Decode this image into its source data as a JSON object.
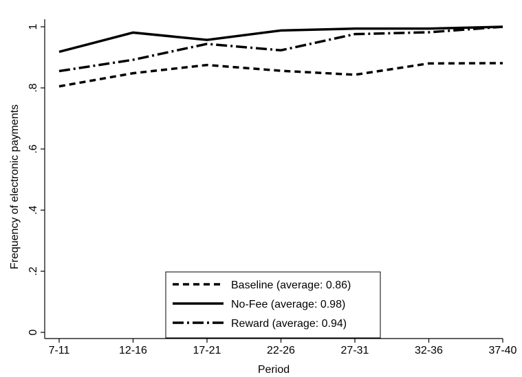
{
  "chart_data": {
    "type": "line",
    "title": "",
    "xlabel": "Period",
    "ylabel": "Frequency of electronic payments",
    "categories": [
      "7-11",
      "12-16",
      "17-21",
      "22-26",
      "27-31",
      "32-36",
      "37-40"
    ],
    "yticks": [
      "0",
      ".2",
      ".4",
      ".6",
      ".8",
      "1"
    ],
    "ylim": [
      0,
      1
    ],
    "grid": false,
    "legend_position": "bottom-center",
    "series": [
      {
        "name": "Baseline (average: 0.86)",
        "line_style": "dashed",
        "values": [
          0.805,
          0.848,
          0.875,
          0.856,
          0.843,
          0.88,
          0.881
        ]
      },
      {
        "name": "No-Fee (average: 0.98)",
        "line_style": "solid",
        "values": [
          0.918,
          0.981,
          0.957,
          0.988,
          0.994,
          0.994,
          1.0
        ]
      },
      {
        "name": "Reward (average: 0.94)",
        "line_style": "dash-dot",
        "values": [
          0.855,
          0.892,
          0.944,
          0.923,
          0.976,
          0.982,
          1.0
        ]
      }
    ]
  }
}
